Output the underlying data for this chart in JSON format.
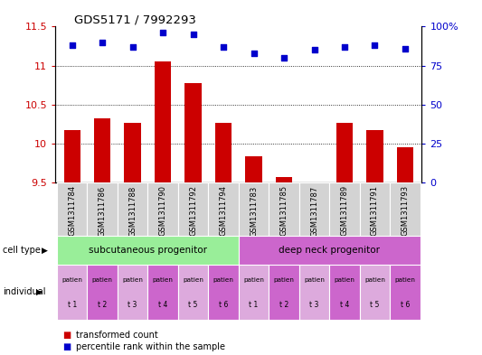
{
  "title": "GDS5171 / 7992293",
  "samples": [
    "GSM1311784",
    "GSM1311786",
    "GSM1311788",
    "GSM1311790",
    "GSM1311792",
    "GSM1311794",
    "GSM1311783",
    "GSM1311785",
    "GSM1311787",
    "GSM1311789",
    "GSM1311791",
    "GSM1311793"
  ],
  "bar_values": [
    10.18,
    10.32,
    10.27,
    11.05,
    10.78,
    10.27,
    9.84,
    9.57,
    9.5,
    10.27,
    10.18,
    9.95
  ],
  "dot_values": [
    88,
    90,
    87,
    96,
    95,
    87,
    83,
    80,
    85,
    87,
    88,
    86
  ],
  "ylim_left": [
    9.5,
    11.5
  ],
  "ylim_right": [
    0,
    100
  ],
  "yticks_left": [
    9.5,
    10.0,
    10.5,
    11.0,
    11.5
  ],
  "yticks_right": [
    0,
    25,
    50,
    75,
    100
  ],
  "ytick_labels_left": [
    "9.5",
    "10",
    "10.5",
    "11",
    "11.5"
  ],
  "ytick_labels_right": [
    "0",
    "25",
    "50",
    "75",
    "100%"
  ],
  "bar_color": "#cc0000",
  "dot_color": "#0000cc",
  "grid_color": "#000000",
  "cell_type_groups": [
    {
      "label": "subcutaneous progenitor",
      "start": 0,
      "end": 6,
      "color": "#99ee99"
    },
    {
      "label": "deep neck progenitor",
      "start": 6,
      "end": 12,
      "color": "#cc66cc"
    }
  ],
  "individual_labels": [
    "t 1",
    "t 2",
    "t 3",
    "t 4",
    "t 5",
    "t 6",
    "t 1",
    "t 2",
    "t 3",
    "t 4",
    "t 5",
    "t 6"
  ],
  "individual_top": "patien",
  "cell_type_label": "cell type",
  "individual_label": "individual",
  "legend_bar_label": "transformed count",
  "legend_dot_label": "percentile rank within the sample",
  "bg_color": "#ffffff",
  "tick_label_color_left": "#cc0000",
  "tick_label_color_right": "#0000cc",
  "gsm_bg_color": "#d3d3d3",
  "ind_colors": [
    "#ddaadd",
    "#cc66cc"
  ]
}
